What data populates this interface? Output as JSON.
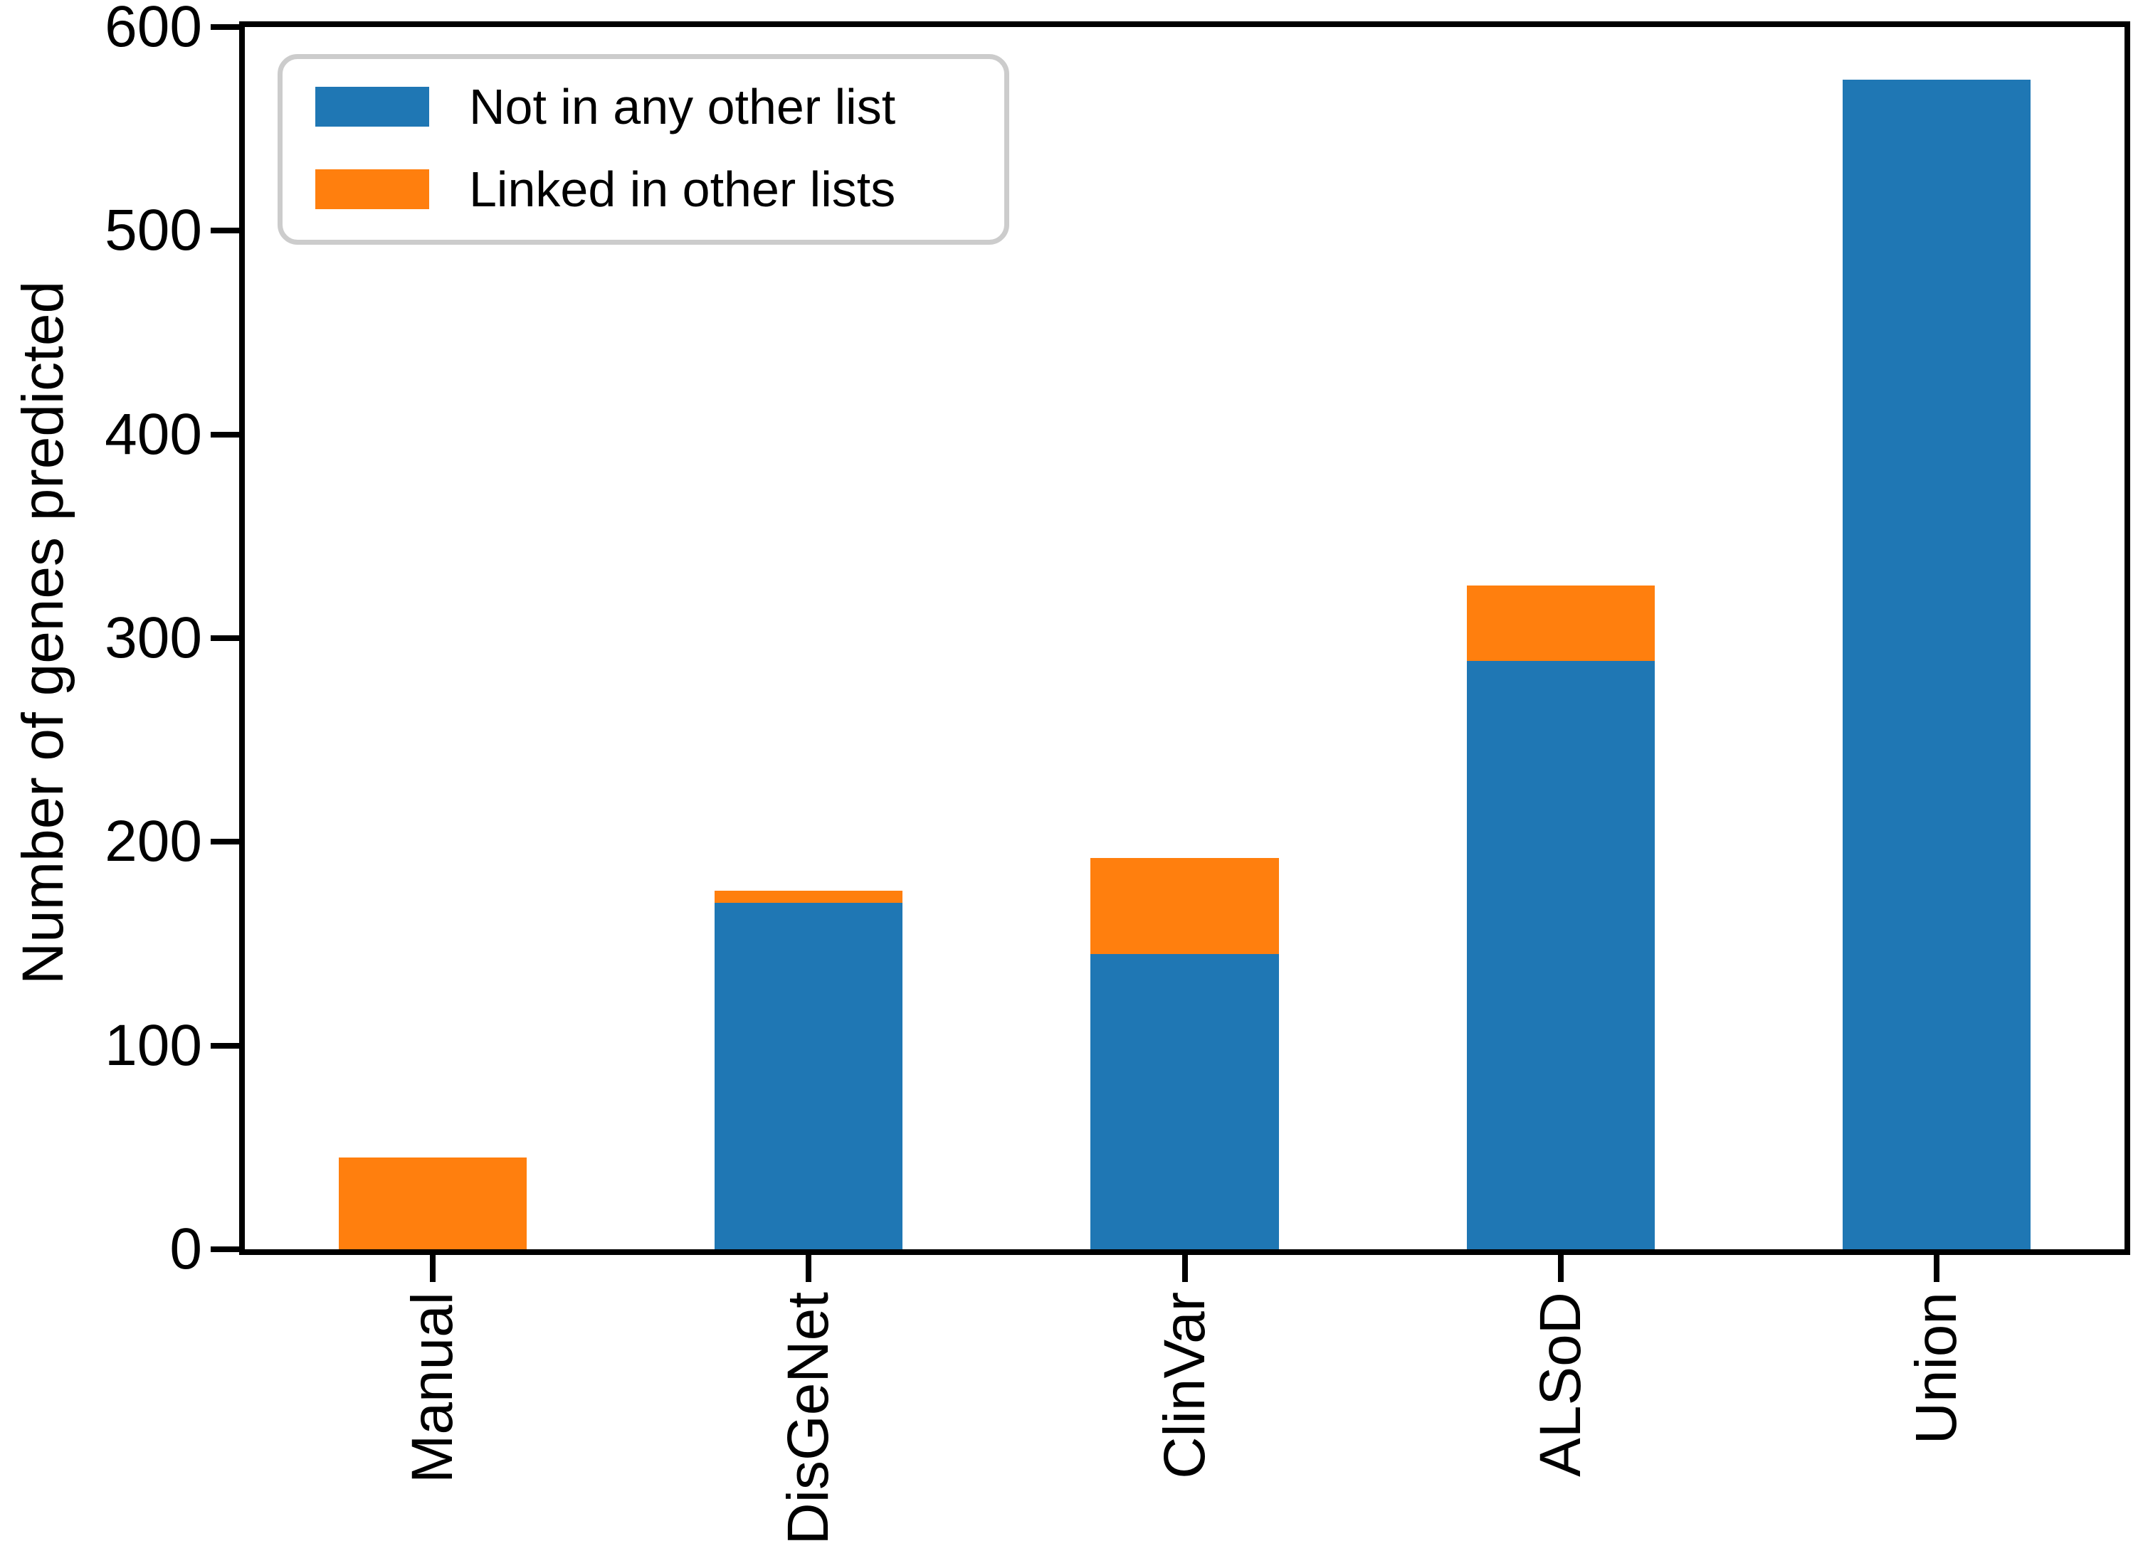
{
  "chart_data": {
    "type": "bar",
    "stacked": true,
    "categories": [
      "Manual",
      "DisGeNet",
      "ClinVar",
      "ALSoD",
      "Union"
    ],
    "series": [
      {
        "name": "Not in any other list",
        "color": "#1f77b4",
        "values": [
          0,
          170,
          145,
          289,
          574
        ]
      },
      {
        "name": "Linked in other lists",
        "color": "#ff7f0e",
        "values": [
          45,
          6,
          47,
          37,
          0
        ]
      }
    ],
    "xlabel": "",
    "ylabel": "Number of genes predicted",
    "ylim": [
      0,
      600
    ],
    "yticks": [
      0,
      100,
      200,
      300,
      400,
      500,
      600
    ],
    "legend_position": "upper left",
    "grid": false,
    "background_color": "#ffffff",
    "spine_color": "#000000"
  }
}
